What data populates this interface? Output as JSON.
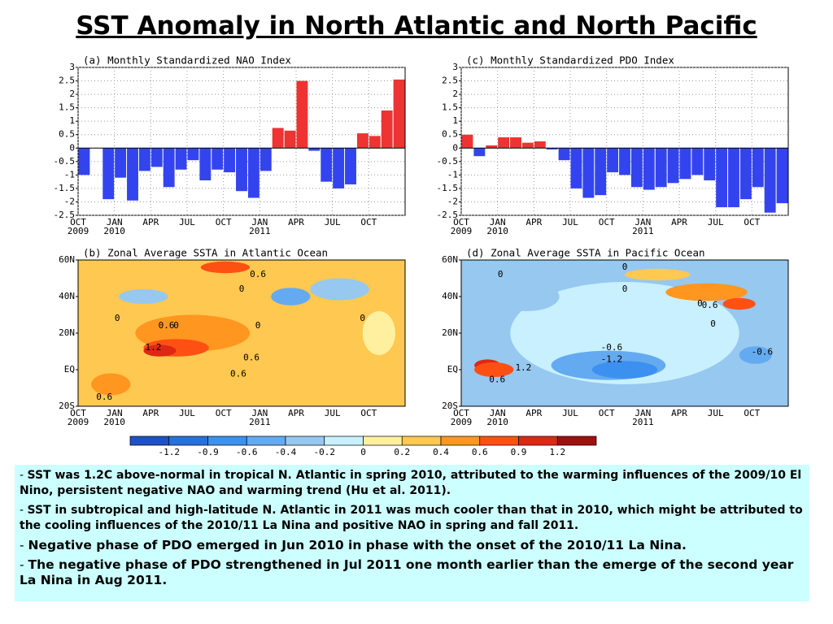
{
  "title": "SST Anomaly in North Atlantic and North Pacific",
  "chart_data": [
    {
      "type": "bar",
      "title": "(a) Monthly Standardized NAO Index",
      "categories": [
        "OCT\n2009",
        null,
        null,
        "JAN\n2010",
        null,
        null,
        "APR",
        null,
        null,
        "JUL",
        null,
        null,
        "OCT",
        null,
        null,
        "JAN\n2011",
        null,
        null,
        "APR",
        null,
        null,
        "JUL",
        null,
        null,
        "OCT",
        null,
        null
      ],
      "values": [
        -1.0,
        0,
        -1.9,
        -1.1,
        -1.95,
        -0.85,
        -0.7,
        -1.45,
        -0.8,
        -0.45,
        -1.2,
        -0.8,
        -0.9,
        -1.6,
        -1.85,
        -0.85,
        0.75,
        0.65,
        2.5,
        -0.1,
        -1.25,
        -1.5,
        -1.35,
        0.55,
        0.45,
        1.4,
        2.55
      ],
      "positive_color": "#ee3333",
      "negative_color": "#3344ee",
      "ylim": [
        -2.5,
        3
      ],
      "yticks": [
        -2.5,
        -2,
        -1.5,
        -1,
        -0.5,
        0,
        0.5,
        1,
        1.5,
        2,
        2.5,
        3
      ],
      "grid": true
    },
    {
      "type": "bar",
      "title": "(c) Monthly Standardized PDO Index",
      "categories": [
        "OCT\n2009",
        null,
        null,
        "JAN\n2010",
        null,
        null,
        "APR",
        null,
        null,
        "JUL",
        null,
        null,
        "OCT",
        null,
        null,
        "JAN\n2011",
        null,
        null,
        "APR",
        null,
        null,
        "JUL",
        null,
        null,
        "OCT",
        null,
        null
      ],
      "values": [
        0.5,
        -0.3,
        0.1,
        0.4,
        0.4,
        0.2,
        0.25,
        -0.05,
        -0.45,
        -1.5,
        -1.85,
        -1.75,
        -0.9,
        -1.0,
        -1.45,
        -1.55,
        -1.45,
        -1.3,
        -1.15,
        -1.0,
        -1.2,
        -2.2,
        -2.2,
        -1.9,
        -1.45,
        -2.4,
        -2.05
      ],
      "positive_color": "#ee3333",
      "negative_color": "#3344ee",
      "ylim": [
        -2.5,
        3
      ],
      "yticks": [
        -2.5,
        -2,
        -1.5,
        -1,
        -0.5,
        0,
        0.5,
        1,
        1.5,
        2,
        2.5,
        3
      ],
      "grid": true
    },
    {
      "type": "heatmap",
      "title": "(b) Zonal Average SSTA in Atlantic Ocean",
      "categories": [
        "OCT\n2009",
        null,
        null,
        "JAN\n2010",
        null,
        null,
        "APR",
        null,
        null,
        "JUL",
        null,
        null,
        "OCT",
        null,
        null,
        "JAN\n2011",
        null,
        null,
        "APR",
        null,
        null,
        "JUL",
        null,
        null,
        "OCT",
        null,
        null
      ],
      "ylim": [
        -20,
        60
      ],
      "yticks": [
        {
          "value": 60,
          "label": "60N"
        },
        {
          "value": 40,
          "label": "40N"
        },
        {
          "value": 20,
          "label": "20N"
        },
        {
          "value": 0,
          "label": "EQ"
        },
        {
          "value": -20,
          "label": "20S"
        }
      ],
      "annotations": [
        "0.6",
        "0",
        "0",
        "0",
        "0.6",
        "0",
        "0",
        "1.2",
        "0.6",
        "0.6",
        "0.6"
      ]
    },
    {
      "type": "heatmap",
      "title": "(d) Zonal Average SSTA in Pacific Ocean",
      "categories": [
        "OCT\n2009",
        null,
        null,
        "JAN\n2010",
        null,
        null,
        "APR",
        null,
        null,
        "JUL",
        null,
        null,
        "OCT",
        null,
        null,
        "JAN\n2011",
        null,
        null,
        "APR",
        null,
        null,
        "JUL",
        null,
        null,
        "OCT",
        null,
        null
      ],
      "ylim": [
        -20,
        60
      ],
      "yticks": [
        {
          "value": 60,
          "label": "60N"
        },
        {
          "value": 40,
          "label": "40N"
        },
        {
          "value": 20,
          "label": "20N"
        },
        {
          "value": 0,
          "label": "EQ"
        },
        {
          "value": -20,
          "label": "20S"
        }
      ],
      "annotations": [
        "0",
        "0",
        "0",
        "0",
        "0.6",
        "0",
        "-0.6",
        "-1.2",
        "-0.6",
        "1.2",
        "0.6"
      ]
    }
  ],
  "colorbar": {
    "colors": [
      "#1e50c8",
      "#2870e0",
      "#3c90f0",
      "#64aaf0",
      "#96c8f0",
      "#c8f0ff",
      "#fff0a0",
      "#ffc850",
      "#ff9620",
      "#ff5014",
      "#dc2814",
      "#a01010"
    ],
    "ticks": [
      -1.2,
      -0.9,
      -0.6,
      -0.4,
      -0.2,
      0,
      0.2,
      0.4,
      0.6,
      0.9,
      1.2
    ]
  },
  "notes": [
    "SST was 1.2C above-normal in tropical N. Atlantic in spring 2010, attributed to the warming influences of the 2009/10 El Nino, persistent negative NAO and warming trend (Hu et al. 2011).",
    "SST in subtropical and high-latitude N. Atlantic in 2011 was much cooler than that in 2010, which might be attributed to the cooling influences of the 2010/11 La Nina and positive NAO in spring and fall 2011.",
    "Negative phase of PDO emerged in Jun 2010 in phase with the onset of the 2010/11 La Nina.",
    "The negative phase of PDO strengthened in Jul 2011 one month earlier than the emerge of the second year La Nina in Aug 2011."
  ]
}
